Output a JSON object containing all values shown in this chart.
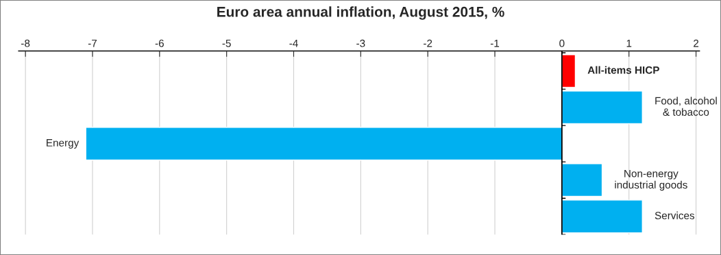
{
  "chart_data": {
    "type": "bar",
    "orientation": "horizontal",
    "title": "Euro area annual inflation, August 2015, %",
    "categories": [
      "All-items HICP",
      "Food, alcohol\n& tobacco",
      "Energy",
      "Non-energy\nindustrial goods",
      "Services"
    ],
    "values": [
      0.2,
      1.2,
      -7.1,
      0.6,
      1.2
    ],
    "colors": [
      "#ff0000",
      "#00b0f0",
      "#00b0f0",
      "#00b0f0",
      "#00b0f0"
    ],
    "xlim": [
      -8.1,
      2.05
    ],
    "xticks": [
      -8,
      -7,
      -6,
      -5,
      -4,
      -3,
      -2,
      -1,
      0,
      1,
      2
    ],
    "grid": "x"
  }
}
